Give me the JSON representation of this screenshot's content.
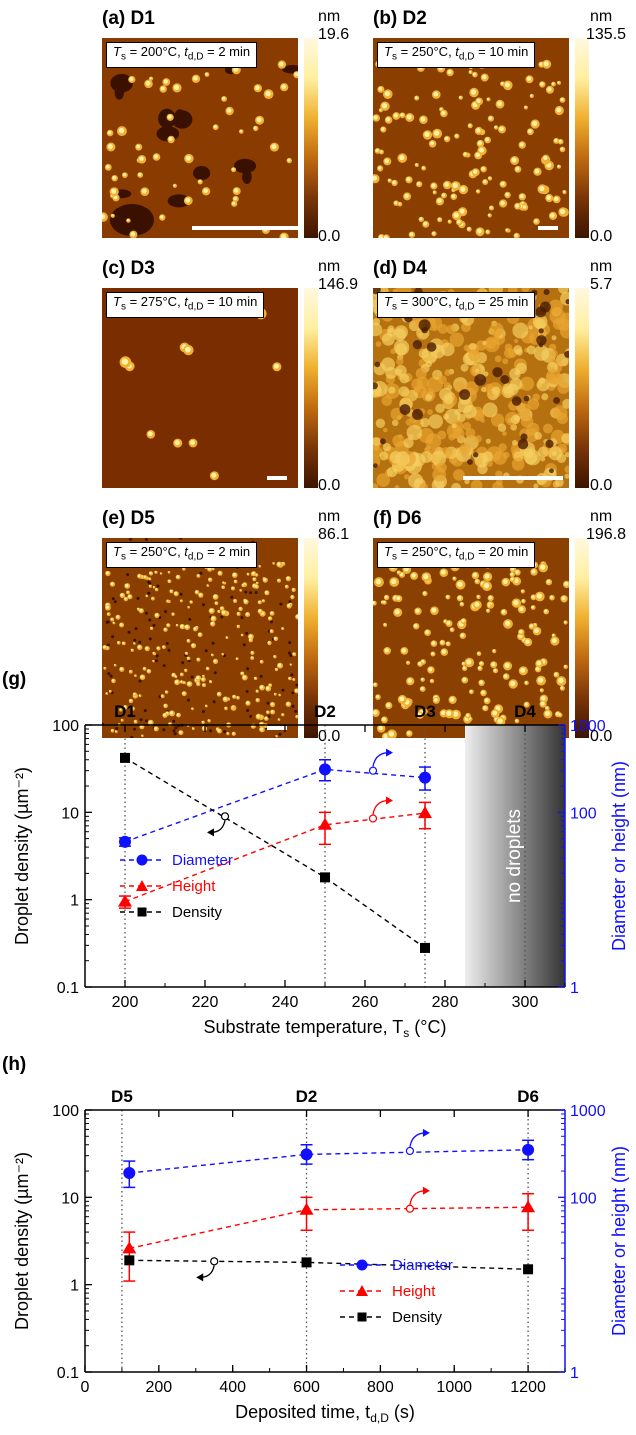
{
  "panels": [
    {
      "label": "(a) D1",
      "condition_ts": "200°C",
      "condition_td": "2 min",
      "cb_unit": "nm",
      "cb_max": "19.6",
      "cb_min": "0.0"
    },
    {
      "label": "(b) D2",
      "condition_ts": "250°C",
      "condition_td": "10 min",
      "cb_unit": "nm",
      "cb_max": "135.5",
      "cb_min": "0.0"
    },
    {
      "label": "(c) D3",
      "condition_ts": "275°C",
      "condition_td": "10 min",
      "cb_unit": "nm",
      "cb_max": "146.9",
      "cb_min": "0.0"
    },
    {
      "label": "(d) D4",
      "condition_ts": "300°C",
      "condition_td": "25 min",
      "cb_unit": "nm",
      "cb_max": "5.7",
      "cb_min": "0.0"
    },
    {
      "label": "(e) D5",
      "condition_ts": "250°C",
      "condition_td": "2 min",
      "cb_unit": "nm",
      "cb_max": "86.1",
      "cb_min": "0.0"
    },
    {
      "label": "(f) D6",
      "condition_ts": "250°C",
      "condition_td": "20 min",
      "cb_unit": "nm",
      "cb_max": "196.8",
      "cb_min": "0.0"
    }
  ],
  "cond_prefix_ts": "T",
  "cond_sub_s": "s",
  "cond_prefix_td": "t",
  "cond_sub_dD": "d,D",
  "chart_data": [
    {
      "panel_label": "(g)",
      "type": "line",
      "xlabel": "Substrate temperature, T",
      "xlabel_sub": "s",
      "xlabel_unit": "(°C)",
      "ylabel": "Droplet density (µm⁻²)",
      "y2label": "Diameter or height (nm)",
      "xlim": [
        190,
        310
      ],
      "ylim": [
        0.1,
        100
      ],
      "y2lim": [
        1,
        1000
      ],
      "log_y": true,
      "x_ticks": [
        200,
        220,
        240,
        260,
        280,
        300
      ],
      "y_ticks": [
        {
          "v": 0.1,
          "t": "0.1"
        },
        {
          "v": 1,
          "t": "1"
        },
        {
          "v": 10,
          "t": "10"
        },
        {
          "v": 100,
          "t": "100"
        }
      ],
      "y2_ticks": [
        {
          "v": 1,
          "t": "1"
        },
        {
          "v": 100,
          "t": "100"
        },
        {
          "v": 1000,
          "t": "1000"
        }
      ],
      "top_labels": [
        {
          "x": 200,
          "t": "D1"
        },
        {
          "x": 250,
          "t": "D2"
        },
        {
          "x": 275,
          "t": "D3"
        },
        {
          "x": 300,
          "t": "D4"
        }
      ],
      "shade_region": [
        285,
        310
      ],
      "shade_text": "no droplets",
      "series": [
        {
          "name": "Diameter",
          "axis": "right",
          "color": "#1010ff",
          "marker": "circle",
          "x": [
            200,
            250,
            275
          ],
          "y": [
            46,
            310,
            250
          ],
          "err": [
            [
              41,
              51
            ],
            [
              230,
              400
            ],
            [
              180,
              330
            ]
          ]
        },
        {
          "name": "Height",
          "axis": "right",
          "color": "#ff0000",
          "marker": "triangle",
          "x": [
            200,
            250,
            275
          ],
          "y": [
            9.5,
            72,
            98
          ],
          "err": [
            [
              8,
              11
            ],
            [
              43,
              100
            ],
            [
              65,
              130
            ]
          ]
        },
        {
          "name": "Density",
          "axis": "left",
          "color": "#000000",
          "marker": "square",
          "x": [
            200,
            250,
            275
          ],
          "y": [
            42,
            1.8,
            0.28
          ],
          "err": null
        }
      ]
    },
    {
      "panel_label": "(h)",
      "type": "line",
      "xlabel": "Deposited time, t",
      "xlabel_sub": "d,D",
      "xlabel_unit": "(s)",
      "ylabel": "Droplet density (µm⁻²)",
      "y2label": "Diameter or height (nm)",
      "xlim": [
        0,
        1300
      ],
      "ylim": [
        0.1,
        100
      ],
      "y2lim": [
        1,
        1000
      ],
      "log_y": true,
      "x_ticks": [
        0,
        200,
        400,
        600,
        800,
        1000,
        1200
      ],
      "y_ticks": [
        {
          "v": 0.1,
          "t": "0.1"
        },
        {
          "v": 1,
          "t": "1"
        },
        {
          "v": 10,
          "t": "10"
        },
        {
          "v": 100,
          "t": "100"
        }
      ],
      "y2_ticks": [
        {
          "v": 1,
          "t": "1"
        },
        {
          "v": 100,
          "t": "100"
        },
        {
          "v": 1000,
          "t": "1000"
        }
      ],
      "top_labels": [
        {
          "x": 100,
          "t": "D5"
        },
        {
          "x": 600,
          "t": "D2"
        },
        {
          "x": 1200,
          "t": "D6"
        }
      ],
      "series": [
        {
          "name": "Diameter",
          "axis": "right",
          "color": "#1010ff",
          "marker": "circle",
          "x": [
            120,
            600,
            1200
          ],
          "y": [
            190,
            310,
            350
          ],
          "err": [
            [
              130,
              260
            ],
            [
              240,
              400
            ],
            [
              270,
              450
            ]
          ]
        },
        {
          "name": "Height",
          "axis": "right",
          "color": "#ff0000",
          "marker": "triangle",
          "x": [
            120,
            600,
            1200
          ],
          "y": [
            26,
            72,
            77
          ],
          "err": [
            [
              11,
              40
            ],
            [
              42,
              100
            ],
            [
              42,
              110
            ]
          ]
        },
        {
          "name": "Density",
          "axis": "left",
          "color": "#000000",
          "marker": "square",
          "x": [
            120,
            600,
            1200
          ],
          "y": [
            1.9,
            1.8,
            1.5
          ],
          "err": null
        }
      ]
    }
  ]
}
